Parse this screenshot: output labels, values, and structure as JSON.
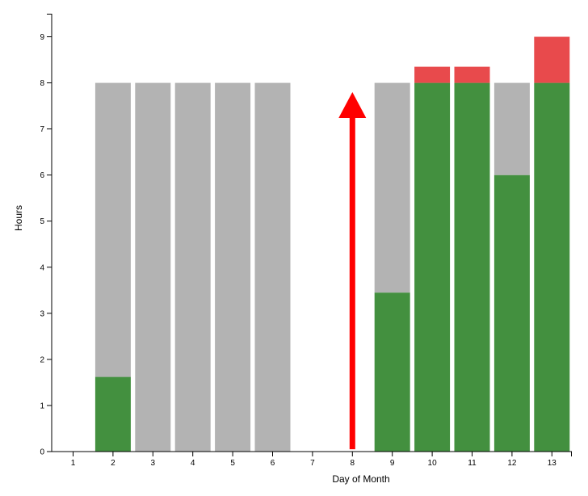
{
  "chart_data": {
    "type": "bar",
    "stacked": true,
    "xlabel": "Day of Month",
    "ylabel": "Hours",
    "categories": [
      1,
      2,
      3,
      4,
      5,
      6,
      7,
      8,
      9,
      10,
      11,
      12,
      13
    ],
    "ylim": [
      0,
      9.5
    ],
    "yticks": [
      0,
      1,
      2,
      3,
      4,
      5,
      6,
      7,
      8,
      9
    ],
    "grid": false,
    "series": [
      {
        "key": "logged",
        "color": "#43903f",
        "values": [
          0,
          1.62,
          0,
          0,
          0,
          0,
          0,
          0,
          3.45,
          8,
          8,
          6,
          8
        ]
      },
      {
        "key": "remaining",
        "color": "#b3b3b3",
        "values": [
          0,
          6.38,
          8,
          8,
          8,
          8,
          0,
          0,
          4.55,
          0,
          0,
          2,
          0
        ]
      },
      {
        "key": "overtime",
        "color": "#e84a4c",
        "values": [
          0,
          0,
          0,
          0,
          0,
          0,
          0,
          0,
          0,
          0.35,
          0.35,
          0,
          1
        ]
      }
    ],
    "annotations": [
      {
        "type": "arrow",
        "color": "#ff0000",
        "x": 8,
        "y_from": 0.05,
        "y_to": 7.8
      }
    ]
  }
}
